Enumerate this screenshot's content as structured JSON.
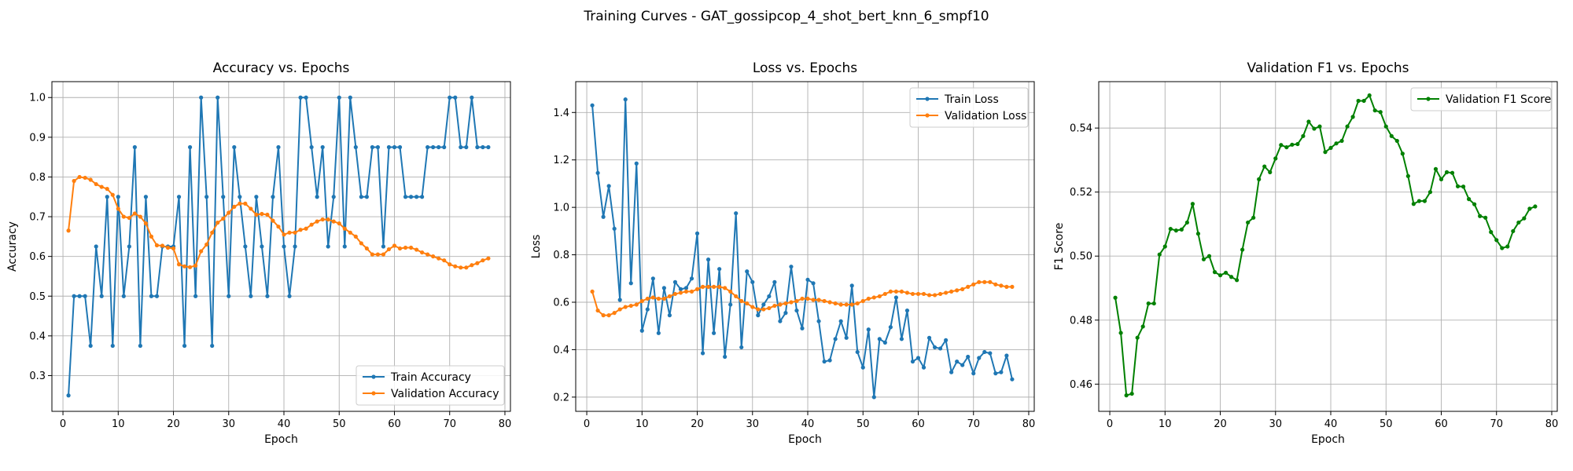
{
  "suptitle": "Training Curves - GAT_gossipcop_4_shot_bert_knn_6_smpf10",
  "chart_data": [
    {
      "type": "line",
      "title": "Accuracy vs. Epochs",
      "xlabel": "Epoch",
      "ylabel": "Accuracy",
      "xlim": [
        -2,
        81
      ],
      "ylim": [
        0.21,
        1.04
      ],
      "xticks": [
        0,
        10,
        20,
        30,
        40,
        50,
        60,
        70,
        80
      ],
      "yticks": [
        0.3,
        0.4,
        0.5,
        0.6,
        0.7,
        0.8,
        0.9,
        1.0
      ],
      "ytick_labels": [
        "0.3",
        "0.4",
        "0.5",
        "0.6",
        "0.7",
        "0.8",
        "0.9",
        "1.0"
      ],
      "grid": true,
      "legend_position": "lower-right",
      "series": [
        {
          "name": "Train Accuracy",
          "color": "#1f77b4",
          "values": [
            0.25,
            0.5,
            0.5,
            0.5,
            0.375,
            0.625,
            0.5,
            0.75,
            0.375,
            0.75,
            0.5,
            0.625,
            0.875,
            0.375,
            0.75,
            0.5,
            0.5,
            0.625,
            0.625,
            0.625,
            0.75,
            0.375,
            0.875,
            0.5,
            1.0,
            0.75,
            0.375,
            1.0,
            0.75,
            0.5,
            0.875,
            0.75,
            0.625,
            0.5,
            0.75,
            0.625,
            0.5,
            0.75,
            0.875,
            0.625,
            0.5,
            0.625,
            1.0,
            1.0,
            0.875,
            0.75,
            0.875,
            0.625,
            0.75,
            1.0,
            0.625,
            1.0,
            0.875,
            0.75,
            0.75,
            0.875,
            0.875,
            0.625,
            0.875,
            0.875,
            0.875,
            0.75,
            0.75,
            0.75,
            0.75,
            0.875,
            0.875,
            0.875,
            0.875,
            1.0,
            1.0,
            0.875,
            0.875,
            1.0,
            0.875,
            0.875,
            0.875
          ]
        },
        {
          "name": "Validation Accuracy",
          "color": "#ff7f0e",
          "values": [
            0.665,
            0.79,
            0.8,
            0.798,
            0.793,
            0.782,
            0.775,
            0.77,
            0.755,
            0.72,
            0.7,
            0.697,
            0.708,
            0.7,
            0.683,
            0.65,
            0.628,
            0.627,
            0.622,
            0.62,
            0.58,
            0.575,
            0.573,
            0.577,
            0.613,
            0.63,
            0.66,
            0.685,
            0.695,
            0.71,
            0.725,
            0.733,
            0.733,
            0.72,
            0.705,
            0.707,
            0.705,
            0.69,
            0.675,
            0.655,
            0.66,
            0.66,
            0.667,
            0.67,
            0.68,
            0.688,
            0.693,
            0.693,
            0.688,
            0.683,
            0.67,
            0.66,
            0.65,
            0.633,
            0.62,
            0.605,
            0.605,
            0.605,
            0.618,
            0.627,
            0.62,
            0.622,
            0.622,
            0.617,
            0.61,
            0.605,
            0.6,
            0.595,
            0.59,
            0.58,
            0.575,
            0.572,
            0.572,
            0.578,
            0.583,
            0.59,
            0.595
          ]
        }
      ]
    },
    {
      "type": "line",
      "title": "Loss vs. Epochs",
      "xlabel": "Epoch",
      "ylabel": "Loss",
      "xlim": [
        -2,
        81
      ],
      "ylim": [
        0.14,
        1.53
      ],
      "xticks": [
        0,
        10,
        20,
        30,
        40,
        50,
        60,
        70,
        80
      ],
      "yticks": [
        0.2,
        0.4,
        0.6,
        0.8,
        1.0,
        1.2,
        1.4
      ],
      "ytick_labels": [
        "0.2",
        "0.4",
        "0.6",
        "0.8",
        "1.0",
        "1.2",
        "1.4"
      ],
      "grid": true,
      "legend_position": "upper-right",
      "series": [
        {
          "name": "Train Loss",
          "color": "#1f77b4",
          "values": [
            1.43,
            1.145,
            0.96,
            1.09,
            0.91,
            0.61,
            1.455,
            0.68,
            1.185,
            0.48,
            0.57,
            0.7,
            0.47,
            0.66,
            0.545,
            0.685,
            0.655,
            0.66,
            0.7,
            0.89,
            0.385,
            0.78,
            0.47,
            0.74,
            0.37,
            0.59,
            0.975,
            0.41,
            0.73,
            0.685,
            0.545,
            0.59,
            0.625,
            0.685,
            0.52,
            0.555,
            0.75,
            0.565,
            0.49,
            0.695,
            0.68,
            0.52,
            0.35,
            0.355,
            0.445,
            0.52,
            0.45,
            0.67,
            0.39,
            0.325,
            0.485,
            0.2,
            0.445,
            0.43,
            0.495,
            0.62,
            0.445,
            0.565,
            0.35,
            0.365,
            0.325,
            0.45,
            0.41,
            0.405,
            0.44,
            0.305,
            0.35,
            0.335,
            0.37,
            0.3,
            0.365,
            0.39,
            0.385,
            0.3,
            0.305,
            0.375,
            0.275
          ]
        },
        {
          "name": "Validation Loss",
          "color": "#ff7f0e",
          "values": [
            0.645,
            0.565,
            0.545,
            0.545,
            0.555,
            0.57,
            0.58,
            0.585,
            0.59,
            0.605,
            0.615,
            0.62,
            0.615,
            0.615,
            0.625,
            0.635,
            0.64,
            0.645,
            0.645,
            0.655,
            0.665,
            0.665,
            0.665,
            0.665,
            0.66,
            0.645,
            0.625,
            0.605,
            0.595,
            0.58,
            0.57,
            0.57,
            0.575,
            0.585,
            0.59,
            0.595,
            0.6,
            0.605,
            0.615,
            0.615,
            0.61,
            0.61,
            0.605,
            0.6,
            0.595,
            0.59,
            0.59,
            0.59,
            0.595,
            0.605,
            0.615,
            0.62,
            0.625,
            0.635,
            0.645,
            0.645,
            0.645,
            0.64,
            0.635,
            0.635,
            0.635,
            0.63,
            0.63,
            0.635,
            0.64,
            0.645,
            0.65,
            0.655,
            0.665,
            0.675,
            0.685,
            0.685,
            0.685,
            0.675,
            0.67,
            0.665,
            0.665
          ]
        }
      ]
    },
    {
      "type": "line",
      "title": "Validation F1 vs. Epochs",
      "xlabel": "Epoch",
      "ylabel": "F1 Score",
      "xlim": [
        -2,
        81
      ],
      "ylim": [
        0.4515,
        0.5545
      ],
      "xticks": [
        0,
        10,
        20,
        30,
        40,
        50,
        60,
        70,
        80
      ],
      "yticks": [
        0.46,
        0.48,
        0.5,
        0.52,
        0.54
      ],
      "ytick_labels": [
        "0.46",
        "0.48",
        "0.50",
        "0.52",
        "0.54"
      ],
      "grid": true,
      "legend_position": "upper-right",
      "series": [
        {
          "name": "Validation F1 Score",
          "color": "#008000",
          "values": [
            0.487,
            0.476,
            0.4565,
            0.457,
            0.4745,
            0.478,
            0.4852,
            0.4852,
            0.5005,
            0.503,
            0.5085,
            0.508,
            0.5083,
            0.5105,
            0.5163,
            0.507,
            0.499,
            0.5,
            0.495,
            0.494,
            0.4948,
            0.4935,
            0.4925,
            0.502,
            0.5105,
            0.512,
            0.524,
            0.528,
            0.5262,
            0.5305,
            0.5347,
            0.534,
            0.5348,
            0.535,
            0.5375,
            0.542,
            0.5398,
            0.5405,
            0.5325,
            0.5338,
            0.5352,
            0.536,
            0.5405,
            0.5435,
            0.5485,
            0.5485,
            0.5502,
            0.5455,
            0.545,
            0.5405,
            0.5375,
            0.536,
            0.532,
            0.525,
            0.5163,
            0.5172,
            0.5172,
            0.52,
            0.5272,
            0.524,
            0.5262,
            0.526,
            0.5218,
            0.5217,
            0.5178,
            0.5162,
            0.5125,
            0.512,
            0.5075,
            0.505,
            0.5025,
            0.503,
            0.5078,
            0.5105,
            0.5118,
            0.5148,
            0.5155
          ]
        }
      ]
    }
  ]
}
